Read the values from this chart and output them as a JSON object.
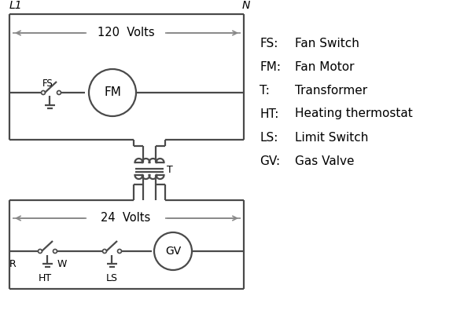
{
  "bg_color": "#ffffff",
  "line_color": "#4a4a4a",
  "text_color": "#000000",
  "legend_items": [
    [
      "FS:",
      "Fan Switch"
    ],
    [
      "FM:",
      "Fan Motor"
    ],
    [
      "T:",
      "Transformer"
    ],
    [
      "HT:",
      "Heating thermostat"
    ],
    [
      "LS:",
      "Limit Switch"
    ],
    [
      "GV:",
      "Gas Valve"
    ]
  ],
  "figsize": [
    5.9,
    4.0
  ],
  "dpi": 100
}
